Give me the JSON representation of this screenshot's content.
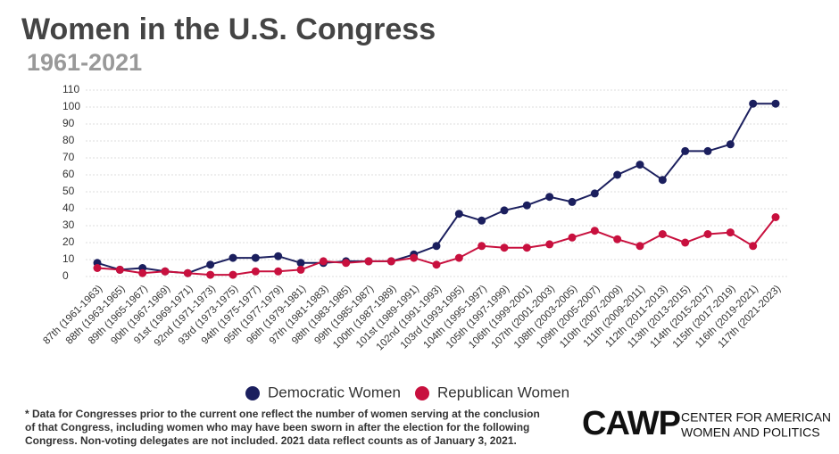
{
  "chart_data": {
    "type": "line",
    "title": "Women in the U.S. Congress",
    "subtitle": "1961-2021",
    "categories": [
      "87th (1961-1963)",
      "88th (1963-1965)",
      "89th (1965-1967)",
      "90th (1967-1969)",
      "91st (1969-1971)",
      "92nd (1971-1973)",
      "93rd (1973-1975)",
      "94th (1975-1977)",
      "95th (1977-1979)",
      "96th (1979-1981)",
      "97th (1981-1983)",
      "98th (1983-1985)",
      "99th (1985-1987)",
      "100th (1987-1989)",
      "101st (1989-1991)",
      "102nd (1991-1993)",
      "103rd (1993-1995)",
      "104th (1995-1997)",
      "105th (1997-1999)",
      "106th (1999-2001)",
      "107th (2001-2003)",
      "108th (2003-2005)",
      "109th (2005-2007)",
      "110th (2007-2009)",
      "111th (2009-2011)",
      "112th (2011-2013)",
      "113th (2013-2015)",
      "114th (2015-2017)",
      "115th (2017-2019)",
      "116th (2019-2021)",
      "117th (2021-2023)"
    ],
    "series": [
      {
        "name": "Democratic Women",
        "color": "#1b1f5e",
        "values": [
          8,
          4,
          5,
          3,
          2,
          7,
          11,
          11,
          12,
          8,
          8,
          9,
          9,
          9,
          13,
          18,
          37,
          33,
          39,
          42,
          47,
          44,
          49,
          60,
          66,
          57,
          74,
          74,
          78,
          102,
          102
        ]
      },
      {
        "name": "Republican Women",
        "color": "#c8103e",
        "values": [
          5,
          4,
          2,
          3,
          2,
          1,
          1,
          3,
          3,
          4,
          9,
          8,
          9,
          9,
          11,
          7,
          11,
          18,
          17,
          17,
          19,
          23,
          27,
          22,
          18,
          25,
          20,
          25,
          26,
          18,
          35
        ]
      }
    ],
    "ylim": [
      0,
      110
    ],
    "yticks": [
      0,
      10,
      20,
      30,
      40,
      50,
      60,
      70,
      80,
      90,
      100,
      110
    ],
    "grid": true,
    "note": [
      "* Data for Congresses prior to the current one reflect the number of women serving at the conclusion",
      "of that Congress, including women who may have been sworn in after the election for the following",
      "Congress. Non-voting delegates are not included. 2021 data reflect counts as of January 3, 2021."
    ],
    "logo": "CAWP",
    "logo_text": [
      "CENTER FOR AMERICAN",
      "WOMEN AND POLITICS"
    ]
  }
}
